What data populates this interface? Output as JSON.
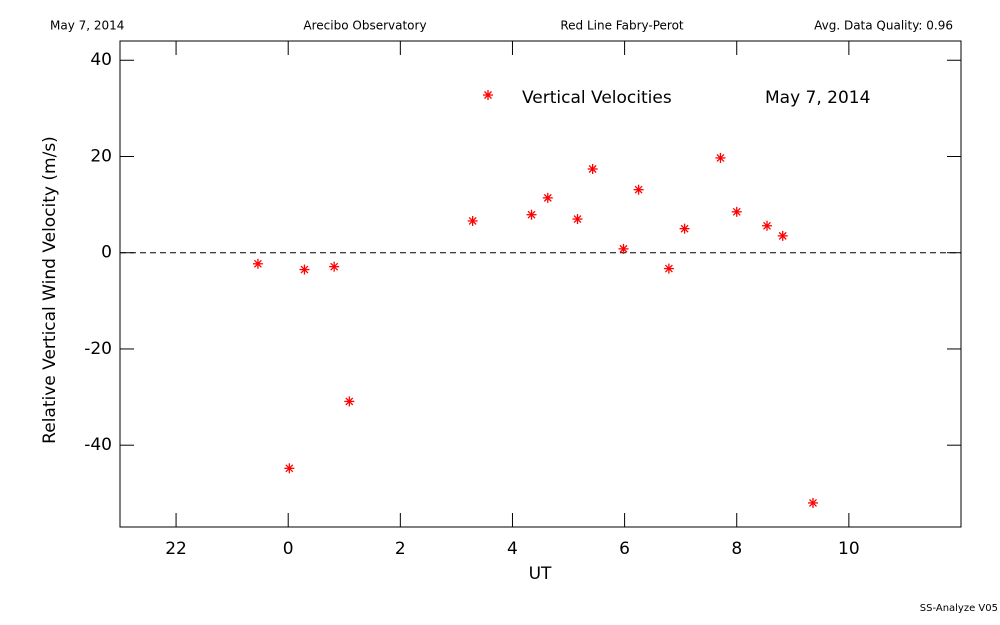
{
  "chart_data": {
    "type": "scatter",
    "header": [
      "May 7, 2014",
      "Arecibo Observatory",
      "Red Line Fabry-Perot",
      "Avg. Data Quality: 0.96"
    ],
    "x_label": "UT",
    "y_label": "Relative Vertical Wind Velocity (m/s)",
    "annotation": "May 7, 2014",
    "footer": "SS-Analyze V05",
    "series": [
      {
        "name": "Vertical Velocities",
        "color": "#ff0000",
        "x": [
          -0.54,
          0.02,
          0.29,
          0.82,
          1.09,
          3.29,
          4.34,
          4.63,
          5.16,
          5.43,
          5.98,
          6.25,
          6.79,
          7.07,
          7.71,
          8.0,
          8.54,
          8.82,
          9.36
        ],
        "values": [
          -2.3,
          -44.8,
          -3.5,
          -2.9,
          -30.9,
          6.6,
          7.9,
          11.4,
          7.0,
          17.4,
          0.8,
          13.1,
          -3.3,
          5.0,
          19.7,
          8.5,
          5.6,
          3.5,
          -52.0
        ]
      }
    ],
    "xlim": [
      -3,
      12
    ],
    "xticks": [
      {
        "value": -2,
        "label": "22"
      },
      0,
      2,
      4,
      6,
      8,
      10
    ],
    "ylim": [
      -57,
      44
    ],
    "yticks": [
      -40,
      -20,
      0,
      20,
      40
    ],
    "reference_line": 0
  }
}
